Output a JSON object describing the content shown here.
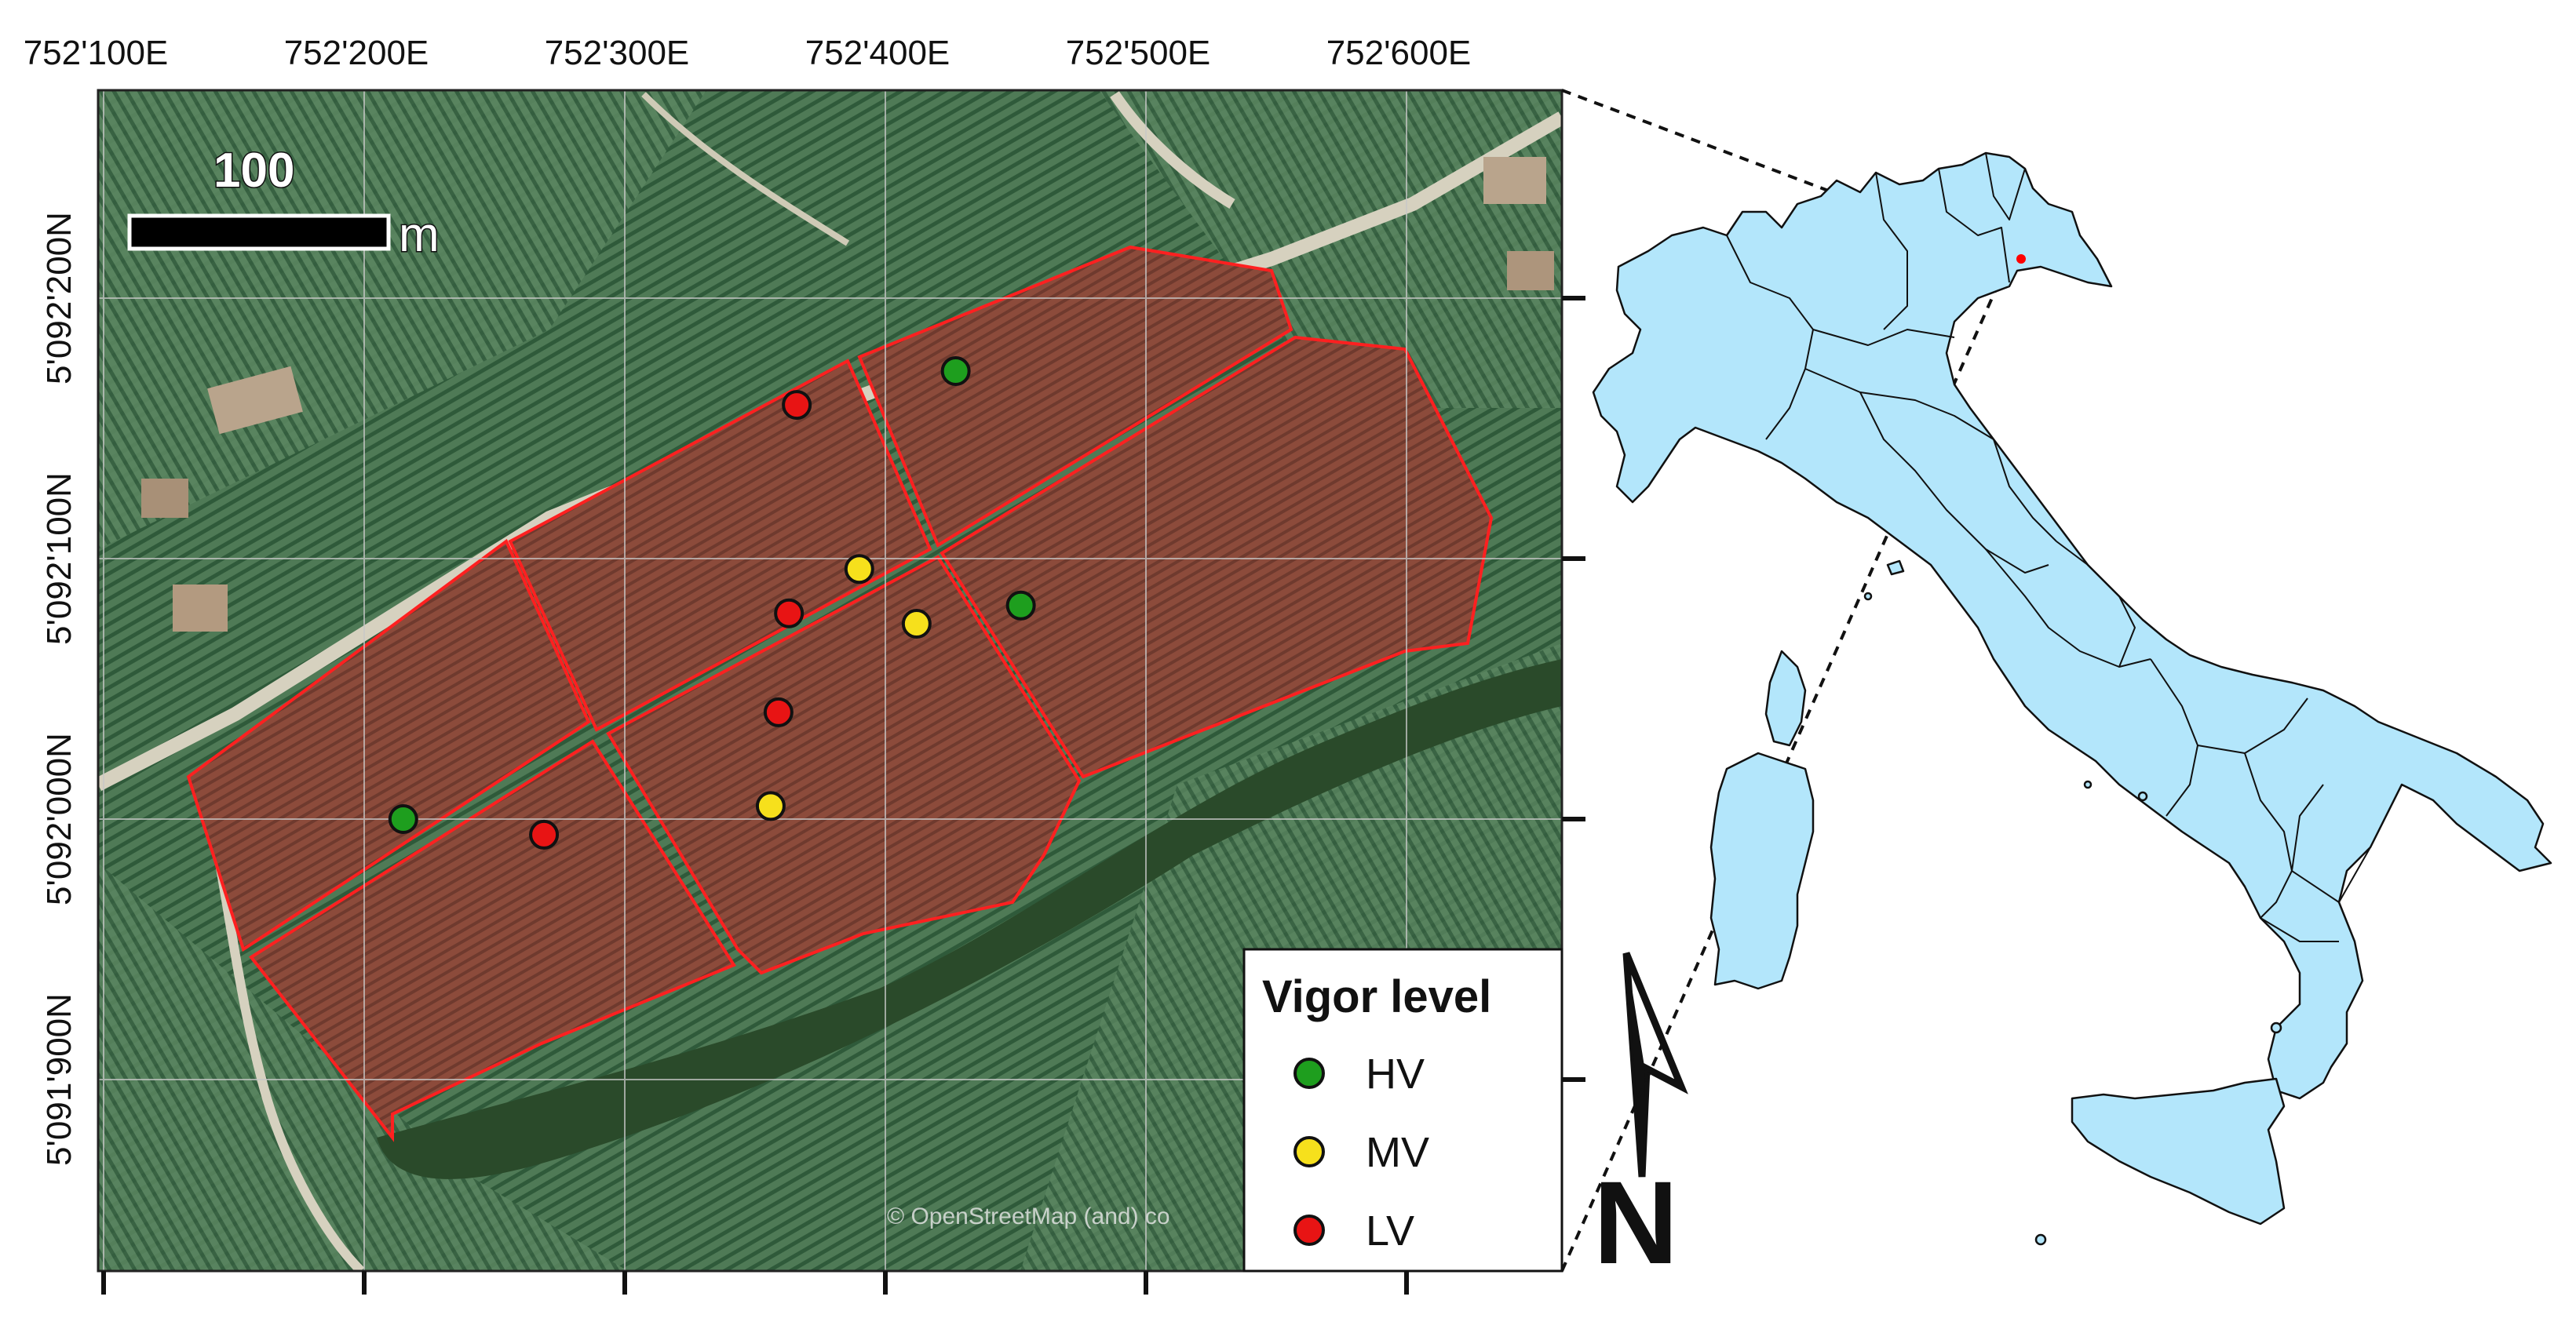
{
  "map": {
    "x_ticks": [
      "752'100E",
      "752'200E",
      "752'300E",
      "752'400E",
      "752'500E",
      "752'600E"
    ],
    "y_ticks": [
      "5'092'200N",
      "5'092'100N",
      "5'092'000N",
      "5'091'900N"
    ],
    "scale_bar": {
      "value": "100",
      "unit": "m"
    },
    "attribution": "© OpenStreetMap (and) co",
    "north_label": "N",
    "legend": {
      "title": "Vigor level",
      "items": [
        {
          "label": "HV",
          "color": "#1e9e1e"
        },
        {
          "label": "MV",
          "color": "#f6e01c"
        },
        {
          "label": "LV",
          "color": "#e81414"
        }
      ]
    },
    "colors": {
      "vineyard_fill": "#8a4a3a",
      "plot_outline": "#ff2020",
      "italy_fill": "#b3e6fb",
      "location_marker": "#ff0000"
    },
    "sample_points": [
      {
        "vigor": "HV",
        "x": 752427,
        "y": 5092172
      },
      {
        "vigor": "HV",
        "x": 752452,
        "y": 5092082
      },
      {
        "vigor": "HV",
        "x": 752215,
        "y": 5092000
      },
      {
        "vigor": "MV",
        "x": 752390,
        "y": 5092096
      },
      {
        "vigor": "MV",
        "x": 752412,
        "y": 5092075
      },
      {
        "vigor": "MV",
        "x": 752356,
        "y": 5092005
      },
      {
        "vigor": "LV",
        "x": 752366,
        "y": 5092159
      },
      {
        "vigor": "LV",
        "x": 752363,
        "y": 5092079
      },
      {
        "vigor": "LV",
        "x": 752359,
        "y": 5092041
      },
      {
        "vigor": "LV",
        "x": 752269,
        "y": 5091994
      }
    ]
  }
}
